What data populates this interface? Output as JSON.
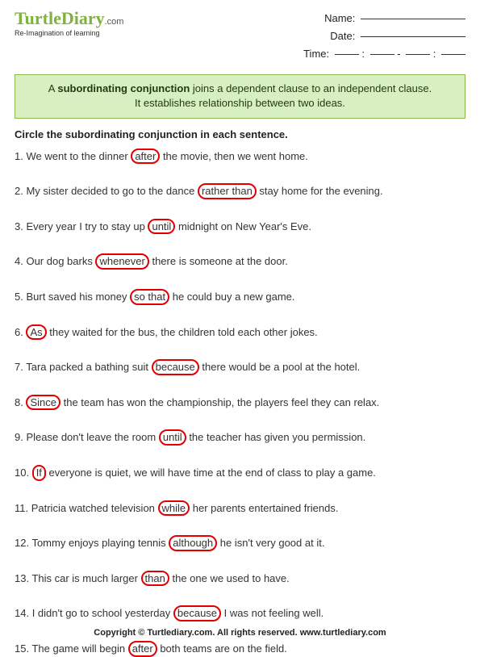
{
  "header": {
    "logo_main": "TurtleDiary",
    "logo_suffix": ".com",
    "tagline": "Re-Imagination of learning",
    "name_label": "Name:",
    "date_label": "Date:",
    "time_label": "Time:"
  },
  "info": {
    "line1_pre": "A ",
    "line1_bold": "subordinating conjunction",
    "line1_post": " joins a dependent clause to an independent clause.",
    "line2": "It establishes relationship between two ideas."
  },
  "instructions": "Circle the subordinating conjunction in each sentence.",
  "questions": [
    {
      "n": "1.",
      "pre": "We went to the dinner ",
      "c": "after",
      "post": " the movie, then we went home."
    },
    {
      "n": "2.",
      "pre": "My sister decided to go to the dance ",
      "c": "rather than",
      "post": " stay home for the evening."
    },
    {
      "n": "3.",
      "pre": "Every year I try to stay up ",
      "c": "until",
      "post": " midnight on New Year's Eve."
    },
    {
      "n": "4.",
      "pre": "Our dog barks ",
      "c": "whenever",
      "post": " there is someone at the door."
    },
    {
      "n": "5.",
      "pre": "Burt saved his money ",
      "c": "so that",
      "post": " he could buy a new game."
    },
    {
      "n": "6.",
      "pre": "",
      "c": "As",
      "post": " they waited for the bus, the children told each other jokes."
    },
    {
      "n": "7.",
      "pre": "Tara packed a bathing suit ",
      "c": "because",
      "post": " there would be a pool at the hotel."
    },
    {
      "n": "8.",
      "pre": "",
      "c": "Since",
      "post": " the team has won the championship, the players feel they can relax."
    },
    {
      "n": "9.",
      "pre": "Please don't leave the room ",
      "c": "until",
      "post": " the teacher has given you permission."
    },
    {
      "n": "10.",
      "pre": "",
      "c": "If",
      "post": " everyone is quiet, we will have time at the end of class to play a game."
    },
    {
      "n": "11.",
      "pre": "Patricia watched television ",
      "c": "while",
      "post": " her parents entertained friends."
    },
    {
      "n": "12.",
      "pre": "Tommy enjoys playing tennis ",
      "c": "although",
      "post": " he isn't very good at it."
    },
    {
      "n": "13.",
      "pre": "This car is much larger ",
      "c": "than",
      "post": " the one we used to have."
    },
    {
      "n": "14.",
      "pre": "I didn't go to school yesterday ",
      "c": "because",
      "post": " I was not feeling well."
    },
    {
      "n": "15.",
      "pre": "The game will begin ",
      "c": "after",
      "post": " both teams are on the field."
    }
  ],
  "footer": "Copyright © Turtlediary.com. All rights reserved.  www.turtlediary.com",
  "colors": {
    "accent_green": "#7fb23f",
    "box_bg": "#d7efc1",
    "box_border": "#88b84e",
    "circle": "#e20000"
  }
}
